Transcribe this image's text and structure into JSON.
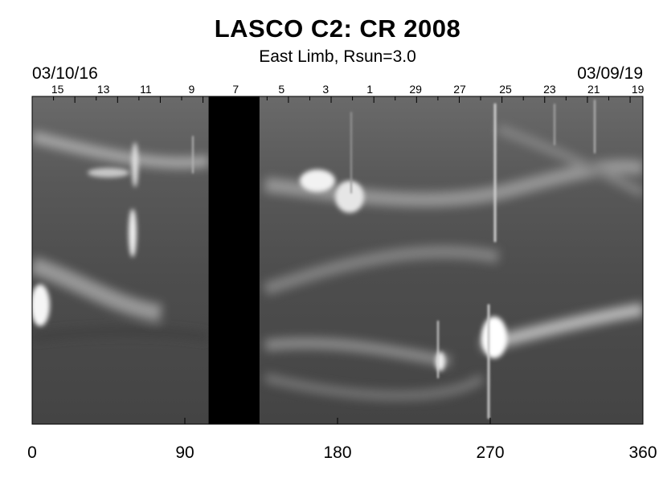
{
  "title": "LASCO C2: CR 2008",
  "subtitle": "East Limb, Rsun=3.0",
  "date_start": "03/10/16",
  "date_end": "03/09/19",
  "x_axis": {
    "range": [
      0,
      360
    ],
    "ticks": [
      "0",
      "90",
      "180",
      "270",
      "360"
    ],
    "tick_values": [
      0,
      90,
      180,
      270,
      360
    ]
  },
  "day_labels": [
    "15",
    "13",
    "11",
    "9",
    "7",
    "5",
    "3",
    "1",
    "29",
    "27",
    "25",
    "23",
    "21",
    "19"
  ],
  "day_label_longitudes": [
    15,
    42,
    67,
    94,
    120,
    147,
    173,
    199,
    226,
    252,
    279,
    305,
    331,
    357
  ],
  "data_gap": {
    "from_longitude": 104,
    "to_longitude": 134
  },
  "colors": {
    "background": "#ffffff",
    "image_base": "#5e5e5e",
    "gap": "#000000",
    "axis": "#000000"
  }
}
